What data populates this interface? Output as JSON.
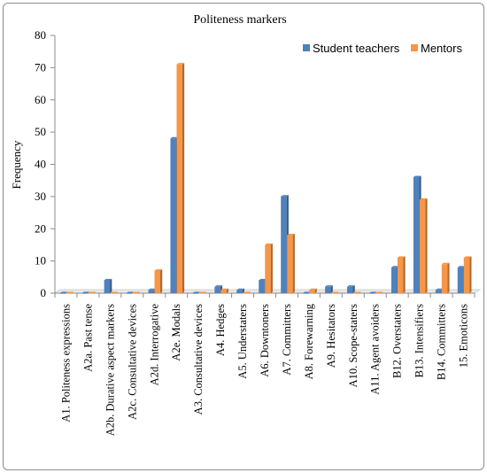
{
  "chart_data": {
    "type": "bar",
    "title": "Politeness markers",
    "xlabel": "",
    "ylabel": "Frequency",
    "ylim": [
      0,
      80
    ],
    "yticks": [
      0,
      10,
      20,
      30,
      40,
      50,
      60,
      70,
      80
    ],
    "grid": false,
    "legend": "top-right",
    "categories": [
      "A1. Politeness expressions",
      "A2a. Past tense",
      "A2b. Durative aspect markers",
      "A2c. Consultative devices",
      "A2d. Interrogative",
      "A2e. Modals",
      "A3. Consultative devices",
      "A4. Hedges",
      "A5. Understaters",
      "A6. Downtoners",
      "A7. Committers",
      "A8. Forewarning",
      "A9. Hesitators",
      "A10. Scope-staters",
      "A11. Agent avoiders",
      "B12. Overstaters",
      "B13. Intensifiers",
      "B14. Committers",
      "15. Emoticons"
    ],
    "series": [
      {
        "name": "Student teachers",
        "color": "#4f81bd",
        "values": [
          0,
          0,
          4,
          0,
          1,
          48,
          0,
          2,
          1,
          4,
          30,
          0,
          2,
          2,
          0,
          8,
          36,
          1,
          8
        ]
      },
      {
        "name": "Mentors",
        "color": "#f79646",
        "values": [
          0,
          0,
          0,
          0,
          7,
          71,
          0,
          1,
          0,
          15,
          18,
          1,
          0,
          0,
          0,
          11,
          29,
          9,
          11
        ]
      }
    ]
  }
}
